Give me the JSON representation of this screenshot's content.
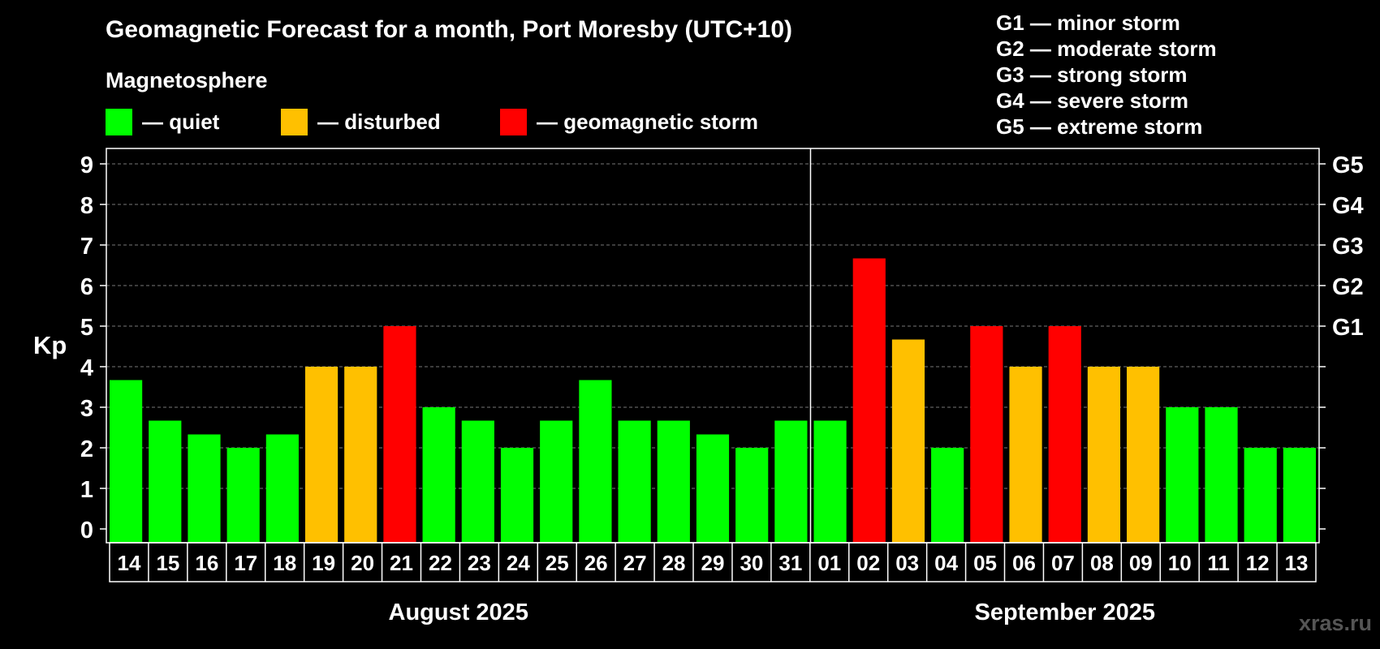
{
  "title": "Geomagnetic Forecast for a month, Port Moresby (UTC+10)",
  "subtitle": "Magnetosphere",
  "legend": [
    {
      "label": "— quiet",
      "color": "#00ff00"
    },
    {
      "label": "— disturbed",
      "color": "#ffc000"
    },
    {
      "label": "— geomagnetic storm",
      "color": "#ff0000"
    }
  ],
  "g_scale": [
    "G1 — minor storm",
    "G2 — moderate storm",
    "G3 — strong storm",
    "G4 — severe storm",
    "G5 — extreme storm"
  ],
  "watermark": "xras.ru",
  "chart_data": {
    "type": "bar",
    "ylabel": "Kp",
    "ylim": [
      0,
      9
    ],
    "yticks": [
      0,
      1,
      2,
      3,
      4,
      5,
      6,
      7,
      8,
      9
    ],
    "right_axis_labels": [
      {
        "y": 5,
        "label": "G1"
      },
      {
        "y": 6,
        "label": "G2"
      },
      {
        "y": 7,
        "label": "G3"
      },
      {
        "y": 8,
        "label": "G4"
      },
      {
        "y": 9,
        "label": "G5"
      }
    ],
    "grid": "dashed horizontal",
    "months": [
      {
        "label": "August 2025",
        "days": 18
      },
      {
        "label": "September 2025",
        "days": 13
      }
    ],
    "categories": [
      "14",
      "15",
      "16",
      "17",
      "18",
      "19",
      "20",
      "21",
      "22",
      "23",
      "24",
      "25",
      "26",
      "27",
      "28",
      "29",
      "30",
      "31",
      "01",
      "02",
      "03",
      "04",
      "05",
      "06",
      "07",
      "08",
      "09",
      "10",
      "11",
      "12",
      "13"
    ],
    "values": [
      3.67,
      2.67,
      2.33,
      2.0,
      2.33,
      4.0,
      4.0,
      5.0,
      3.0,
      2.67,
      2.0,
      2.67,
      3.67,
      2.67,
      2.67,
      2.33,
      2.0,
      2.67,
      2.67,
      6.67,
      4.67,
      2.0,
      5.0,
      4.0,
      5.0,
      4.0,
      4.0,
      3.0,
      3.0,
      2.0,
      2.0
    ],
    "levels": [
      "quiet",
      "quiet",
      "quiet",
      "quiet",
      "quiet",
      "disturbed",
      "disturbed",
      "storm",
      "quiet",
      "quiet",
      "quiet",
      "quiet",
      "quiet",
      "quiet",
      "quiet",
      "quiet",
      "quiet",
      "quiet",
      "quiet",
      "storm",
      "disturbed",
      "quiet",
      "storm",
      "disturbed",
      "storm",
      "disturbed",
      "disturbed",
      "quiet",
      "quiet",
      "quiet",
      "quiet"
    ],
    "level_colors": {
      "quiet": "#00ff00",
      "disturbed": "#ffc000",
      "storm": "#ff0000"
    }
  }
}
